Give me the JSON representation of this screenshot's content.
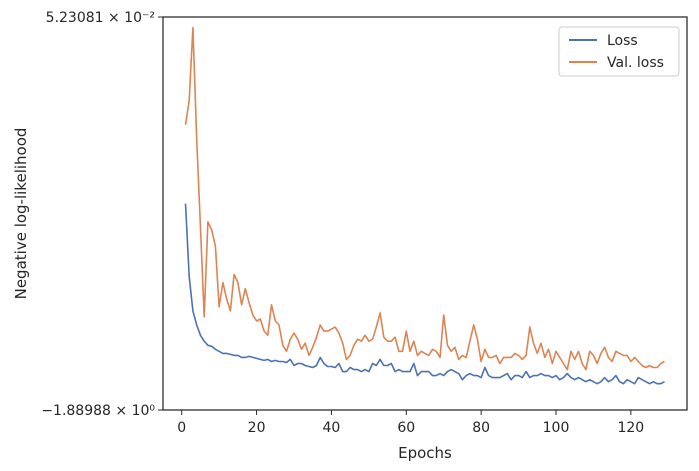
{
  "chart_data": {
    "type": "line",
    "xlabel": "Epochs",
    "ylabel": "Negative log-likelihood",
    "xlim": [
      -5,
      135
    ],
    "xticks": [
      0,
      20,
      40,
      60,
      80,
      100,
      120
    ],
    "ylim": [
      -1.88988,
      0.0523081
    ],
    "ytick_labels": [
      "5.23081 × 10⁻²",
      "−1.88988 × 10⁰"
    ],
    "grid": false,
    "legend_position": "upper-right",
    "series": [
      {
        "name": "Loss",
        "color": "#4c72b0",
        "x": [
          1,
          2,
          3,
          4,
          5,
          6,
          7,
          8,
          9,
          10,
          11,
          12,
          13,
          14,
          15,
          16,
          17,
          18,
          19,
          20,
          21,
          22,
          23,
          24,
          25,
          26,
          27,
          28,
          29,
          30,
          31,
          32,
          33,
          34,
          35,
          36,
          37,
          38,
          39,
          40,
          41,
          42,
          43,
          44,
          45,
          46,
          47,
          48,
          49,
          50,
          51,
          52,
          53,
          54,
          55,
          56,
          57,
          58,
          59,
          60,
          61,
          62,
          63,
          64,
          65,
          66,
          67,
          68,
          69,
          70,
          71,
          72,
          73,
          74,
          75,
          76,
          77,
          78,
          79,
          80,
          81,
          82,
          83,
          84,
          85,
          86,
          87,
          88,
          89,
          90,
          91,
          92,
          93,
          94,
          95,
          96,
          97,
          98,
          99,
          100,
          101,
          102,
          103,
          104,
          105,
          106,
          107,
          108,
          109,
          110,
          111,
          112,
          113,
          114,
          115,
          116,
          117,
          118,
          119,
          120,
          121,
          122,
          123,
          124,
          125,
          126,
          127,
          128,
          129
        ],
        "y": [
          -0.87,
          -1.23,
          -1.4,
          -1.47,
          -1.52,
          -1.55,
          -1.57,
          -1.575,
          -1.59,
          -1.6,
          -1.61,
          -1.61,
          -1.615,
          -1.62,
          -1.62,
          -1.63,
          -1.63,
          -1.625,
          -1.63,
          -1.635,
          -1.64,
          -1.645,
          -1.64,
          -1.65,
          -1.645,
          -1.65,
          -1.65,
          -1.655,
          -1.64,
          -1.67,
          -1.66,
          -1.66,
          -1.67,
          -1.675,
          -1.68,
          -1.67,
          -1.63,
          -1.66,
          -1.675,
          -1.675,
          -1.68,
          -1.66,
          -1.7,
          -1.7,
          -1.68,
          -1.69,
          -1.69,
          -1.7,
          -1.69,
          -1.7,
          -1.66,
          -1.67,
          -1.64,
          -1.67,
          -1.67,
          -1.66,
          -1.7,
          -1.69,
          -1.7,
          -1.7,
          -1.7,
          -1.66,
          -1.72,
          -1.7,
          -1.7,
          -1.7,
          -1.72,
          -1.72,
          -1.71,
          -1.72,
          -1.7,
          -1.69,
          -1.7,
          -1.71,
          -1.74,
          -1.72,
          -1.71,
          -1.72,
          -1.72,
          -1.73,
          -1.68,
          -1.72,
          -1.73,
          -1.73,
          -1.73,
          -1.72,
          -1.71,
          -1.74,
          -1.72,
          -1.72,
          -1.73,
          -1.7,
          -1.73,
          -1.72,
          -1.72,
          -1.71,
          -1.72,
          -1.72,
          -1.73,
          -1.72,
          -1.74,
          -1.73,
          -1.71,
          -1.73,
          -1.74,
          -1.73,
          -1.74,
          -1.75,
          -1.74,
          -1.75,
          -1.76,
          -1.75,
          -1.73,
          -1.75,
          -1.74,
          -1.72,
          -1.75,
          -1.76,
          -1.74,
          -1.75,
          -1.76,
          -1.73,
          -1.74,
          -1.75,
          -1.76,
          -1.75,
          -1.76,
          -1.76,
          -1.75
        ]
      },
      {
        "name": "Val. loss",
        "color": "#dd8452",
        "x": [
          1,
          2,
          3,
          4,
          5,
          6,
          7,
          8,
          9,
          10,
          11,
          12,
          13,
          14,
          15,
          16,
          17,
          18,
          19,
          20,
          21,
          22,
          23,
          24,
          25,
          26,
          27,
          28,
          29,
          30,
          31,
          32,
          33,
          34,
          35,
          36,
          37,
          38,
          39,
          40,
          41,
          42,
          43,
          44,
          45,
          46,
          47,
          48,
          49,
          50,
          51,
          52,
          53,
          54,
          55,
          56,
          57,
          58,
          59,
          60,
          61,
          62,
          63,
          64,
          65,
          66,
          67,
          68,
          69,
          70,
          71,
          72,
          73,
          74,
          75,
          76,
          77,
          78,
          79,
          80,
          81,
          82,
          83,
          84,
          85,
          86,
          87,
          88,
          89,
          90,
          91,
          92,
          93,
          94,
          95,
          96,
          97,
          98,
          99,
          100,
          101,
          102,
          103,
          104,
          105,
          106,
          107,
          108,
          109,
          110,
          111,
          112,
          113,
          114,
          115,
          116,
          117,
          118,
          119,
          120,
          121,
          122,
          123,
          124,
          125,
          126,
          127,
          128,
          129
        ],
        "y": [
          -0.48,
          -0.36,
          0.0,
          -0.55,
          -0.98,
          -1.43,
          -0.96,
          -1.0,
          -1.08,
          -1.38,
          -1.26,
          -1.34,
          -1.4,
          -1.22,
          -1.26,
          -1.37,
          -1.29,
          -1.36,
          -1.42,
          -1.45,
          -1.44,
          -1.5,
          -1.52,
          -1.37,
          -1.45,
          -1.47,
          -1.57,
          -1.6,
          -1.54,
          -1.51,
          -1.54,
          -1.59,
          -1.56,
          -1.62,
          -1.58,
          -1.53,
          -1.47,
          -1.5,
          -1.5,
          -1.49,
          -1.48,
          -1.51,
          -1.56,
          -1.64,
          -1.62,
          -1.57,
          -1.54,
          -1.55,
          -1.52,
          -1.55,
          -1.54,
          -1.48,
          -1.41,
          -1.53,
          -1.55,
          -1.55,
          -1.53,
          -1.6,
          -1.6,
          -1.5,
          -1.6,
          -1.55,
          -1.62,
          -1.6,
          -1.61,
          -1.62,
          -1.59,
          -1.6,
          -1.63,
          -1.42,
          -1.57,
          -1.6,
          -1.58,
          -1.64,
          -1.62,
          -1.63,
          -1.55,
          -1.47,
          -1.54,
          -1.65,
          -1.59,
          -1.63,
          -1.63,
          -1.62,
          -1.66,
          -1.63,
          -1.63,
          -1.63,
          -1.61,
          -1.62,
          -1.64,
          -1.62,
          -1.48,
          -1.56,
          -1.61,
          -1.56,
          -1.63,
          -1.59,
          -1.66,
          -1.6,
          -1.63,
          -1.66,
          -1.69,
          -1.6,
          -1.64,
          -1.6,
          -1.66,
          -1.69,
          -1.6,
          -1.62,
          -1.66,
          -1.61,
          -1.58,
          -1.63,
          -1.65,
          -1.6,
          -1.61,
          -1.62,
          -1.62,
          -1.65,
          -1.63,
          -1.65,
          -1.67,
          -1.68,
          -1.67,
          -1.68,
          -1.68,
          -1.66,
          -1.65
        ]
      }
    ]
  }
}
